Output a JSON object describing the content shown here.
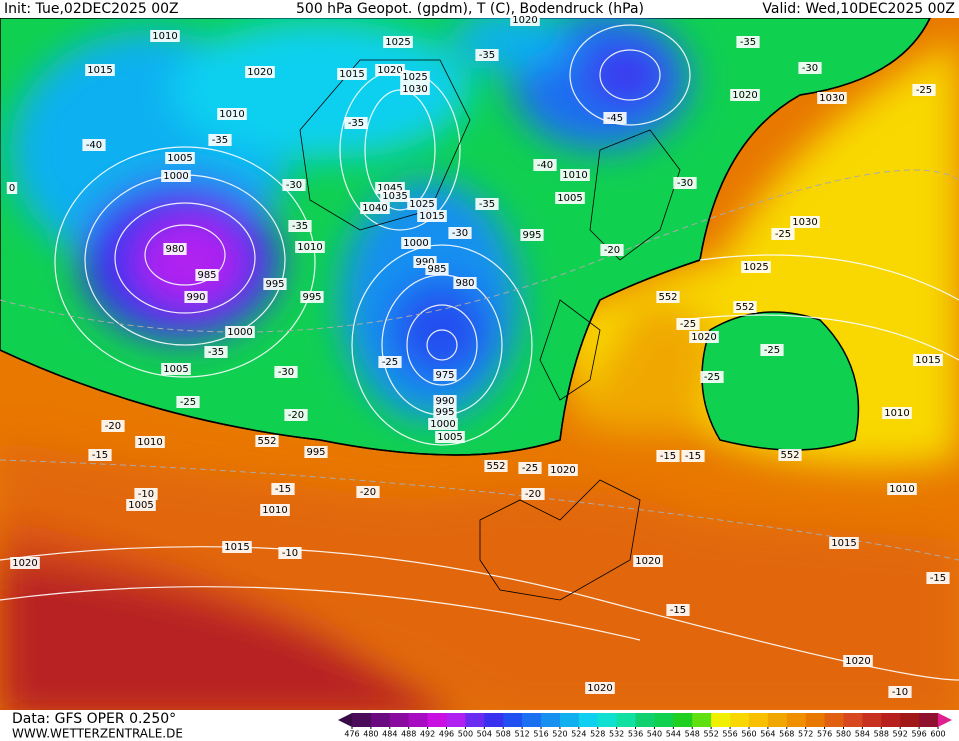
{
  "header": {
    "init": "Init: Tue,02DEC2025 00Z",
    "title": "500 hPa Geopot. (gpdm), T (C), Bodendruck (hPa)",
    "valid": "Valid: Wed,10DEC2025 00Z"
  },
  "footer": {
    "data_source": "Data: GFS OPER 0.250°",
    "website": "WWW.WETTERZENTRALE.DE"
  },
  "colorbar": {
    "ticks": [
      476,
      480,
      484,
      488,
      492,
      496,
      500,
      504,
      508,
      512,
      516,
      520,
      524,
      528,
      532,
      536,
      540,
      544,
      548,
      552,
      556,
      560,
      564,
      568,
      572,
      576,
      580,
      584,
      588,
      592,
      596,
      600
    ],
    "colors": [
      "#4b0c5a",
      "#6a0a80",
      "#8a0aa0",
      "#a80cc0",
      "#c810e0",
      "#b020f0",
      "#6a2cf0",
      "#3a30f0",
      "#2050f0",
      "#1a70f0",
      "#1890f0",
      "#10b0f0",
      "#10d0f0",
      "#10e0d0",
      "#10e0a0",
      "#10d070",
      "#10d050",
      "#20d020",
      "#60e010",
      "#f0f000",
      "#f8d800",
      "#f8c000",
      "#f0a800",
      "#f09000",
      "#e87800",
      "#e06010",
      "#d84820",
      "#c83020",
      "#b82020",
      "#a01818",
      "#901030"
    ],
    "low_arrow_color": "#3a0a48",
    "high_arrow_color": "#e02090"
  },
  "map_labels": [
    "1010",
    "1015",
    "1020",
    "1025",
    "1020",
    "1015",
    "1025",
    "1030",
    "1010",
    "-40",
    "-35",
    "-35",
    "1005",
    "1000",
    "1045",
    "1035",
    "1025",
    "1015",
    "1040",
    "-30",
    "-35",
    "1010",
    "1000",
    "-30",
    "995",
    "-35",
    "990",
    "985",
    "980",
    "980",
    "985",
    "990",
    "995",
    "995",
    "1000",
    "-35",
    "1005",
    "-30",
    "-25",
    "975",
    "-25",
    "-20",
    "990",
    "995",
    "1000",
    "1005",
    "-20",
    "1010",
    "552",
    "995",
    "-15",
    "552",
    "-25",
    "1020",
    "-15",
    "-20",
    "-20",
    "-10",
    "1005",
    "1010",
    "1015",
    "-10",
    "1020",
    "1020",
    "-15",
    "1020",
    "1020",
    "-10",
    "1015",
    "-15",
    "1010",
    "1010",
    "1015",
    "552",
    "-15",
    "-15",
    "-25",
    "-25",
    "552",
    "1020",
    "-25",
    "552",
    "1025",
    "-25",
    "1030",
    "-20",
    "-30",
    "1010",
    "1005",
    "-40",
    "-45",
    "1020",
    "1030",
    "-35",
    "-30",
    "-25",
    "-35",
    "1020",
    "0"
  ]
}
